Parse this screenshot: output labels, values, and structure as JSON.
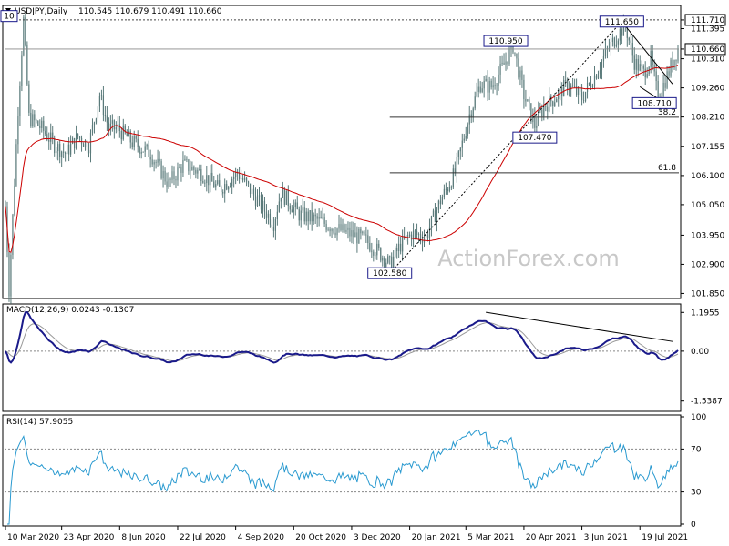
{
  "chart_data": {
    "type": "candlestick",
    "header": {
      "symbol_tf": "USDJPY,Daily",
      "ohlc": "110.545 110.679 110.491 110.660"
    },
    "watermark": "ActionForex.com",
    "price_axis": {
      "ticks": [
        "111.710",
        "111.395",
        "110.660",
        "110.310",
        "109.260",
        "108.210",
        "107.155",
        "106.100",
        "105.050",
        "103.950",
        "102.900",
        "101.850"
      ],
      "range": [
        101.7,
        112.2
      ],
      "current": "110.660",
      "high_line": "111.710"
    },
    "x_axis": {
      "labels": [
        "10 Mar 2020",
        "23 Apr 2020",
        "8 Jun 2020",
        "22 Jul 2020",
        "4 Sep 2020",
        "20 Oct 2020",
        "3 Dec 2020",
        "20 Jan 2021",
        "5 Mar 2021",
        "20 Apr 2021",
        "3 Jun 2021",
        "19 Jul 2021"
      ],
      "label_bars": [
        0,
        31,
        63,
        95,
        127,
        159,
        191,
        223,
        254,
        286,
        318,
        350
      ]
    },
    "annotations": [
      {
        "text": "111.650",
        "bar": 340,
        "price": 111.65
      },
      {
        "text": "110.950",
        "bar": 276,
        "price": 110.95
      },
      {
        "text": "108.710",
        "bar": 358,
        "price": 108.71
      },
      {
        "text": "107.470",
        "bar": 292,
        "price": 107.47
      },
      {
        "text": "102.580",
        "bar": 212,
        "price": 102.58
      },
      {
        "text": "10",
        "bar": 2,
        "price": 111.85
      }
    ],
    "fib_levels": [
      {
        "text": "38.2",
        "price": 108.2
      },
      {
        "text": "61.8",
        "price": 106.2
      }
    ],
    "macd": {
      "label": "MACD(12,26,9) 0.0243 -0.1307",
      "ticks": [
        "1.1955",
        "0.00",
        "-1.5387"
      ],
      "range": [
        -1.8,
        1.4
      ]
    },
    "rsi": {
      "label": "RSI(14) 57.9055",
      "ticks": [
        "100",
        "70",
        "30",
        "0"
      ]
    }
  }
}
